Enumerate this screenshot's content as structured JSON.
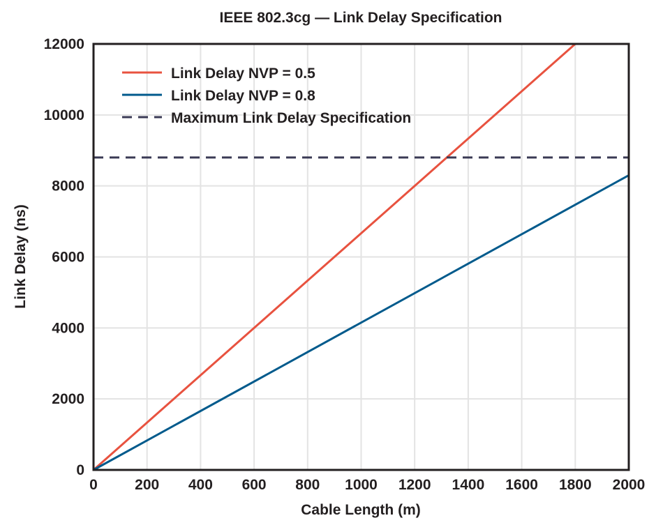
{
  "chart_data": {
    "type": "line",
    "title": "IEEE 802.3cg — Link Delay Specification",
    "xlabel": "Cable Length (m)",
    "ylabel": "Link Delay (ns)",
    "xlim": [
      0,
      2000
    ],
    "ylim": [
      0,
      12000
    ],
    "xticks": [
      0,
      200,
      400,
      600,
      800,
      1000,
      1200,
      1400,
      1600,
      1800,
      2000
    ],
    "yticks": [
      0,
      2000,
      4000,
      6000,
      8000,
      10000,
      12000
    ],
    "grid": true,
    "legend_position": "top-left",
    "series": [
      {
        "name": "Link Delay NVP = 0.5",
        "color": "#e8523f",
        "style": "solid",
        "x": [
          0,
          1800
        ],
        "y": [
          0,
          12000
        ]
      },
      {
        "name": "Link Delay NVP = 0.8",
        "color": "#005a8c",
        "style": "solid",
        "x": [
          0,
          2000
        ],
        "y": [
          0,
          8300
        ]
      },
      {
        "name": "Maximum Link Delay Specification",
        "color": "#3a3a55",
        "style": "dashed",
        "x": [
          0,
          2000
        ],
        "y": [
          8800,
          8800
        ]
      }
    ]
  }
}
